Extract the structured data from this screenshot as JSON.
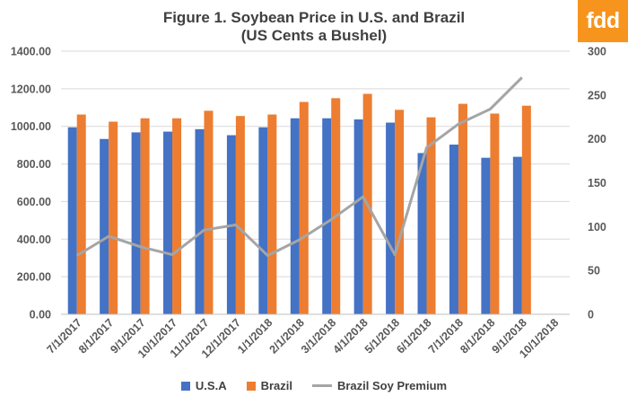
{
  "title_line1": "Figure 1. Soybean Price  in U.S. and Brazil",
  "title_line2": "(US Cents a Bushel)",
  "logo_text": "fdd",
  "colors": {
    "usa": "#4472c4",
    "brazil": "#ed7d31",
    "premium": "#a5a5a5",
    "logo_bg": "#f7941d"
  },
  "chart_data": {
    "type": "bar",
    "categories": [
      "7/1/2017",
      "8/1/2017",
      "9/1/2017",
      "10/1/2017",
      "11/1/2017",
      "12/1/2017",
      "1/1/2018",
      "2/1/2018",
      "3/1/2018",
      "4/1/2018",
      "5/1/2018",
      "6/1/2018",
      "7/1/2018",
      "8/1/2018",
      "9/1/2018",
      "10/1/2018"
    ],
    "series": [
      {
        "name": "U.S.A",
        "type": "bar",
        "axis": "left",
        "values": [
          995,
          933,
          968,
          972,
          985,
          953,
          995,
          1043,
          1043,
          1037,
          1020,
          858,
          903,
          833,
          838,
          null
        ]
      },
      {
        "name": "Brazil",
        "type": "bar",
        "axis": "left",
        "values": [
          1063,
          1025,
          1043,
          1043,
          1083,
          1055,
          1063,
          1130,
          1150,
          1173,
          1088,
          1048,
          1120,
          1068,
          1110,
          null
        ]
      },
      {
        "name": "Brazil Soy Premium",
        "type": "line",
        "axis": "right",
        "values": [
          67,
          89,
          77,
          68,
          96,
          102,
          67,
          85,
          108,
          134,
          68,
          190,
          217,
          234,
          270,
          null
        ]
      }
    ],
    "left_axis": {
      "min": 0,
      "max": 1400,
      "step": 200,
      "tick_labels": [
        "0.00",
        "200.00",
        "400.00",
        "600.00",
        "800.00",
        "1000.00",
        "1200.00",
        "1400.00"
      ]
    },
    "right_axis": {
      "min": 0,
      "max": 300,
      "step": 50,
      "tick_labels": [
        "0",
        "50",
        "100",
        "150",
        "200",
        "250",
        "300"
      ]
    },
    "grid": true,
    "legend_position": "bottom"
  }
}
